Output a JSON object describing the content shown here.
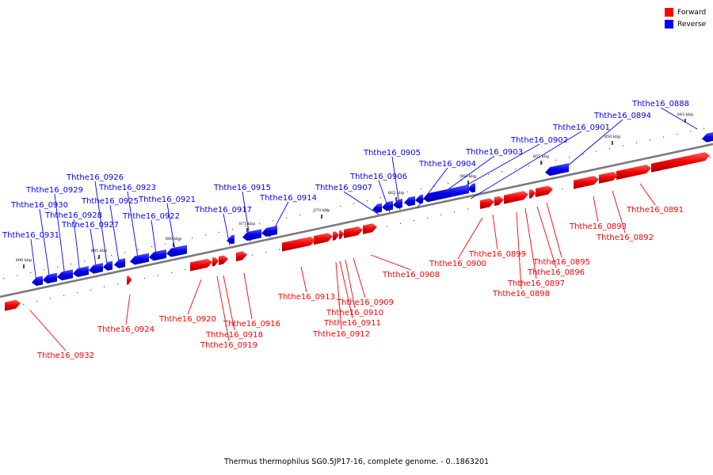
{
  "legend": {
    "forward_label": "Forward",
    "reverse_label": "Reverse",
    "forward_color": "#ff0000",
    "reverse_color": "#0000ff"
  },
  "caption": "Thermus thermophilus SG0.5JP17-16, complete genome. - 0..1863201",
  "axis_ticks": [
    "890 kbp",
    "885 kbp",
    "880 kbp",
    "875 kbp",
    "870 kbp",
    "865 kbp",
    "860 kbp",
    "855 kbp",
    "850 kbp",
    "845 kbp"
  ],
  "genes": [
    {
      "name": "Ththe16_0888",
      "strand": "reverse"
    },
    {
      "name": "Ththe16_0891",
      "strand": "forward"
    },
    {
      "name": "Ththe16_0892",
      "strand": "forward"
    },
    {
      "name": "Ththe16_0893",
      "strand": "forward"
    },
    {
      "name": "Ththe16_0894",
      "strand": "reverse"
    },
    {
      "name": "Ththe16_0895",
      "strand": "forward"
    },
    {
      "name": "Ththe16_0896",
      "strand": "forward"
    },
    {
      "name": "Ththe16_0897",
      "strand": "forward"
    },
    {
      "name": "Ththe16_0898",
      "strand": "forward"
    },
    {
      "name": "Ththe16_0899",
      "strand": "forward"
    },
    {
      "name": "Ththe16_0900",
      "strand": "forward"
    },
    {
      "name": "Ththe16_0901",
      "strand": "reverse"
    },
    {
      "name": "Ththe16_0902",
      "strand": "reverse"
    },
    {
      "name": "Ththe16_0903",
      "strand": "reverse"
    },
    {
      "name": "Ththe16_0904",
      "strand": "reverse"
    },
    {
      "name": "Ththe16_0905",
      "strand": "reverse"
    },
    {
      "name": "Ththe16_0906",
      "strand": "reverse"
    },
    {
      "name": "Ththe16_0907",
      "strand": "reverse"
    },
    {
      "name": "Ththe16_0908",
      "strand": "forward"
    },
    {
      "name": "Ththe16_0909",
      "strand": "forward"
    },
    {
      "name": "Ththe16_0910",
      "strand": "forward"
    },
    {
      "name": "Ththe16_0911",
      "strand": "forward"
    },
    {
      "name": "Ththe16_0912",
      "strand": "forward"
    },
    {
      "name": "Ththe16_0913",
      "strand": "forward"
    },
    {
      "name": "Ththe16_0914",
      "strand": "reverse"
    },
    {
      "name": "Ththe16_0915",
      "strand": "reverse"
    },
    {
      "name": "Ththe16_0916",
      "strand": "forward"
    },
    {
      "name": "Ththe16_0917",
      "strand": "reverse"
    },
    {
      "name": "Ththe16_0918",
      "strand": "forward"
    },
    {
      "name": "Ththe16_0919",
      "strand": "forward"
    },
    {
      "name": "Ththe16_0920",
      "strand": "forward"
    },
    {
      "name": "Ththe16_0921",
      "strand": "reverse"
    },
    {
      "name": "Ththe16_0922",
      "strand": "reverse"
    },
    {
      "name": "Ththe16_0923",
      "strand": "reverse"
    },
    {
      "name": "Ththe16_0924",
      "strand": "forward"
    },
    {
      "name": "Ththe16_0925",
      "strand": "reverse"
    },
    {
      "name": "Ththe16_0926",
      "strand": "reverse"
    },
    {
      "name": "Ththe16_0927",
      "strand": "reverse"
    },
    {
      "name": "Ththe16_0928",
      "strand": "reverse"
    },
    {
      "name": "Ththe16_0929",
      "strand": "reverse"
    },
    {
      "name": "Ththe16_0930",
      "strand": "reverse"
    },
    {
      "name": "Ththe16_0931",
      "strand": "reverse"
    },
    {
      "name": "Ththe16_0932",
      "strand": "forward"
    }
  ]
}
